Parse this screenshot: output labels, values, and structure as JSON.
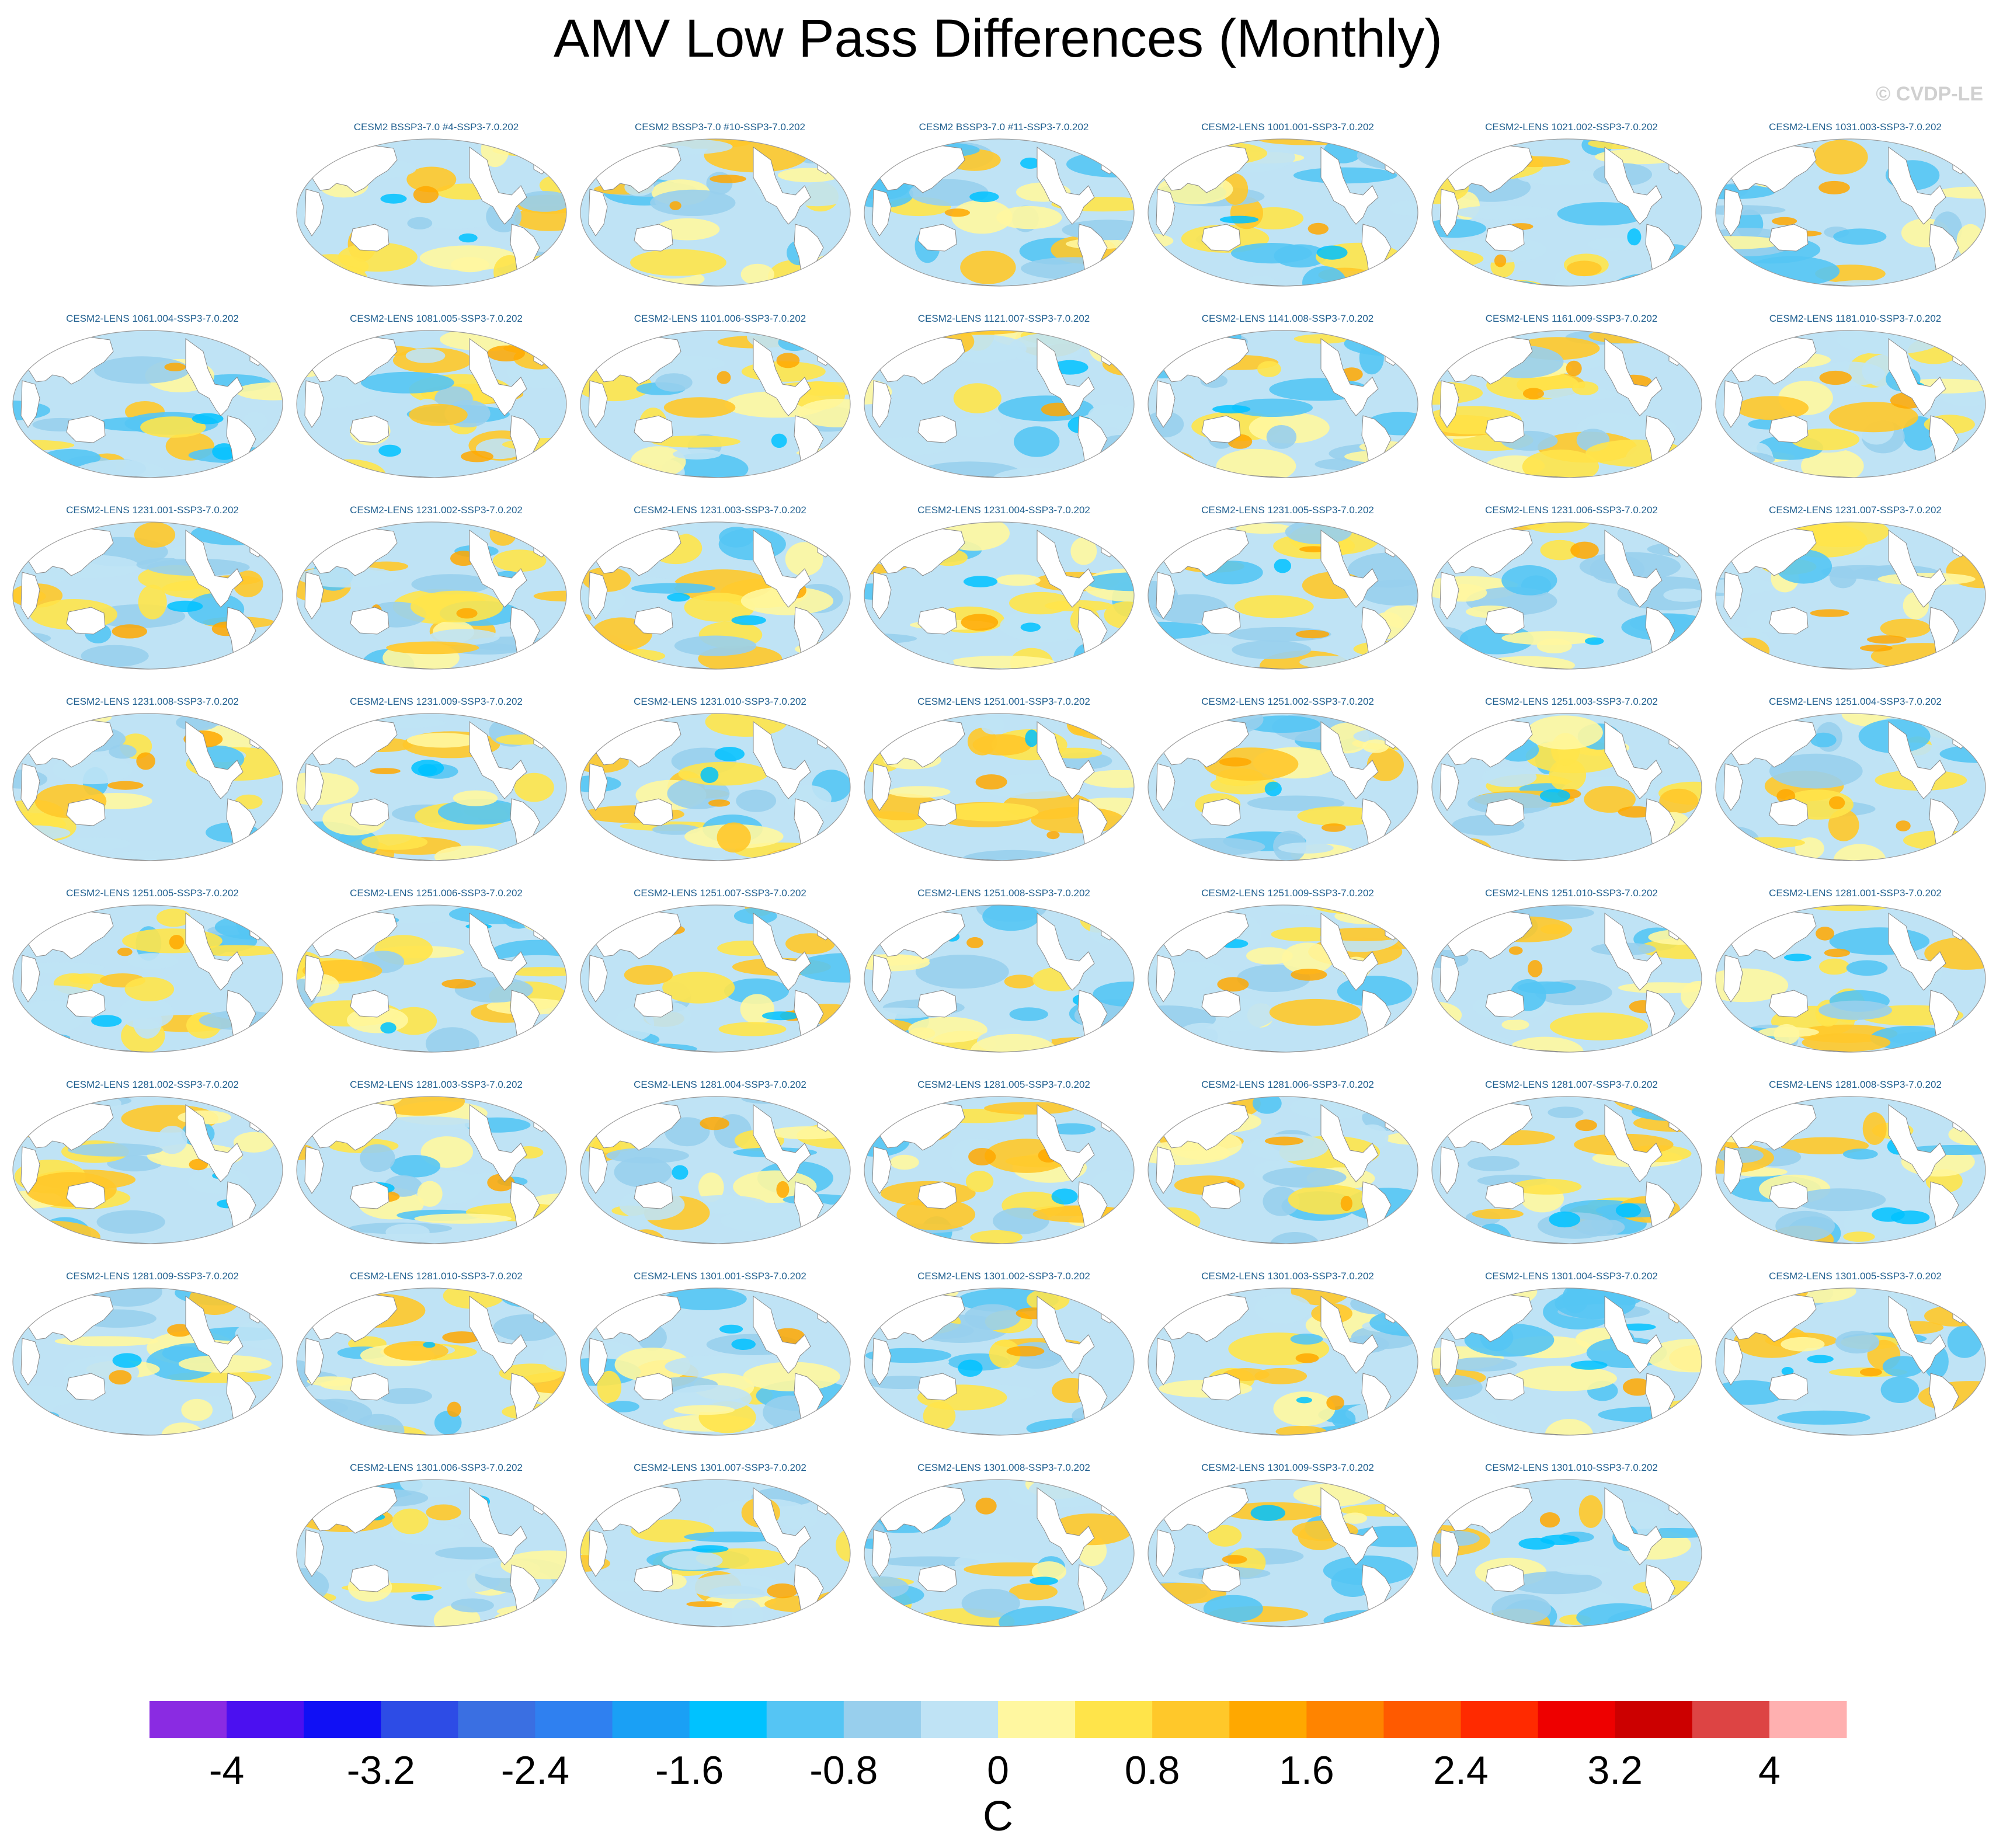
{
  "title": "AMV Low Pass Differences (Monthly)",
  "copyright": "© CVDP-LE",
  "chart_data": {
    "type": "heatmap",
    "description_type": "multi-panel global map grid of sea surface temperature differences",
    "title": "AMV Low Pass Differences (Monthly)",
    "panels": [
      [
        "",
        "CESM2 BSSP3-7.0 #4-SSP3-7.0.202",
        "CESM2 BSSP3-7.0 #10-SSP3-7.0.202",
        "CESM2 BSSP3-7.0 #11-SSP3-7.0.202",
        "CESM2-LENS 1001.001-SSP3-7.0.202",
        "CESM2-LENS 1021.002-SSP3-7.0.202",
        "CESM2-LENS 1031.003-SSP3-7.0.202"
      ],
      [
        "CESM2-LENS 1061.004-SSP3-7.0.202",
        "CESM2-LENS 1081.005-SSP3-7.0.202",
        "CESM2-LENS 1101.006-SSP3-7.0.202",
        "CESM2-LENS 1121.007-SSP3-7.0.202",
        "CESM2-LENS 1141.008-SSP3-7.0.202",
        "CESM2-LENS 1161.009-SSP3-7.0.202",
        "CESM2-LENS 1181.010-SSP3-7.0.202"
      ],
      [
        "CESM2-LENS 1231.001-SSP3-7.0.202",
        "CESM2-LENS 1231.002-SSP3-7.0.202",
        "CESM2-LENS 1231.003-SSP3-7.0.202",
        "CESM2-LENS 1231.004-SSP3-7.0.202",
        "CESM2-LENS 1231.005-SSP3-7.0.202",
        "CESM2-LENS 1231.006-SSP3-7.0.202",
        "CESM2-LENS 1231.007-SSP3-7.0.202"
      ],
      [
        "CESM2-LENS 1231.008-SSP3-7.0.202",
        "CESM2-LENS 1231.009-SSP3-7.0.202",
        "CESM2-LENS 1231.010-SSP3-7.0.202",
        "CESM2-LENS 1251.001-SSP3-7.0.202",
        "CESM2-LENS 1251.002-SSP3-7.0.202",
        "CESM2-LENS 1251.003-SSP3-7.0.202",
        "CESM2-LENS 1251.004-SSP3-7.0.202"
      ],
      [
        "CESM2-LENS 1251.005-SSP3-7.0.202",
        "CESM2-LENS 1251.006-SSP3-7.0.202",
        "CESM2-LENS 1251.007-SSP3-7.0.202",
        "CESM2-LENS 1251.008-SSP3-7.0.202",
        "CESM2-LENS 1251.009-SSP3-7.0.202",
        "CESM2-LENS 1251.010-SSP3-7.0.202",
        "CESM2-LENS 1281.001-SSP3-7.0.202"
      ],
      [
        "CESM2-LENS 1281.002-SSP3-7.0.202",
        "CESM2-LENS 1281.003-SSP3-7.0.202",
        "CESM2-LENS 1281.004-SSP3-7.0.202",
        "CESM2-LENS 1281.005-SSP3-7.0.202",
        "CESM2-LENS 1281.006-SSP3-7.0.202",
        "CESM2-LENS 1281.007-SSP3-7.0.202",
        "CESM2-LENS 1281.008-SSP3-7.0.202"
      ],
      [
        "CESM2-LENS 1281.009-SSP3-7.0.202",
        "CESM2-LENS 1281.010-SSP3-7.0.202",
        "CESM2-LENS 1301.001-SSP3-7.0.202",
        "CESM2-LENS 1301.002-SSP3-7.0.202",
        "CESM2-LENS 1301.003-SSP3-7.0.202",
        "CESM2-LENS 1301.004-SSP3-7.0.202",
        "CESM2-LENS 1301.005-SSP3-7.0.202"
      ],
      [
        "",
        "CESM2-LENS 1301.006-SSP3-7.0.202",
        "CESM2-LENS 1301.007-SSP3-7.0.202",
        "CESM2-LENS 1301.008-SSP3-7.0.202",
        "CESM2-LENS 1301.009-SSP3-7.0.202",
        "CESM2-LENS 1301.010-SSP3-7.0.202",
        ""
      ]
    ],
    "colorbar": {
      "label": "C",
      "range": [
        -4.4,
        4.4
      ],
      "step": 0.4,
      "tick_values": [
        -4,
        -3.2,
        -2.4,
        -1.6,
        -0.8,
        0,
        0.8,
        1.6,
        2.4,
        3.2,
        4
      ],
      "tick_labels": [
        "-4",
        "-3.2",
        "-2.4",
        "-1.6",
        "-0.8",
        "0",
        "0.8",
        "1.6",
        "2.4",
        "3.2",
        "4"
      ],
      "colors": [
        "#8a2be2",
        "#4b10f0",
        "#1010f5",
        "#2d4ce6",
        "#3a6fe2",
        "#2f80f0",
        "#1aa0f5",
        "#00c2ff",
        "#55c5f4",
        "#98cfed",
        "#bfe3f5",
        "#fff7a0",
        "#ffe44a",
        "#ffc82a",
        "#ffa800",
        "#ff8400",
        "#ff5a00",
        "#ff2a00",
        "#ee0000",
        "#cc0000",
        "#dd4444",
        "#ffb0b0"
      ]
    },
    "land_color": "#ffffff",
    "coastline_color": "#888888"
  }
}
